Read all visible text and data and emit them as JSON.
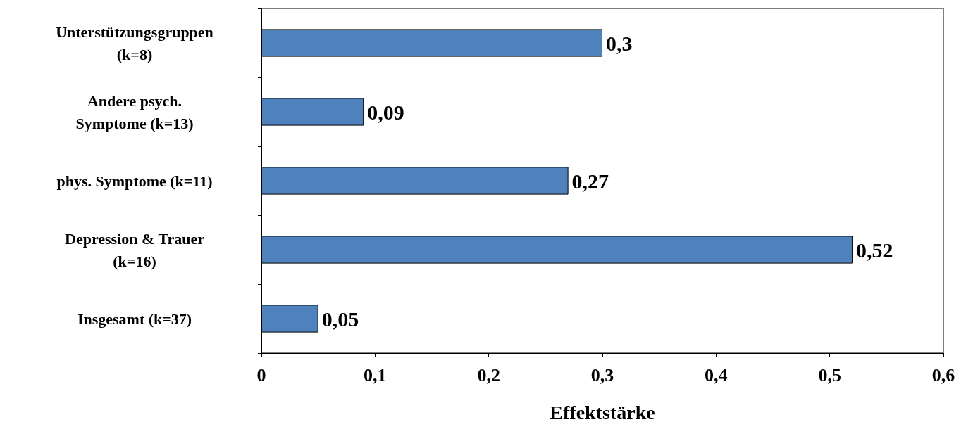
{
  "chart_data": {
    "type": "bar",
    "orientation": "horizontal",
    "xlabel": "Effektstärke",
    "categories": [
      "Unterstützungsgruppen (k=8)",
      "Andere psych. Symptome (k=13)",
      "phys. Symptome (k=11)",
      "Depression & Trauer (k=16)",
      "Insgesamt (k=37)"
    ],
    "values": [
      0.3,
      0.09,
      0.27,
      0.52,
      0.05
    ],
    "value_labels": [
      "0,3",
      "0,09",
      "0,27",
      "0,52",
      "0,05"
    ],
    "color": "#4f81bd",
    "xlim": [
      0,
      0.6
    ],
    "xticks": [
      0,
      {
        "value": 0.1,
        "label": "0,1"
      },
      {
        "value": 0.2,
        "label": "0,2"
      },
      {
        "value": 0.3,
        "label": "0,3"
      },
      {
        "value": 0.4,
        "label": "0,4"
      },
      {
        "value": 0.5,
        "label": "0,5"
      },
      {
        "value": 0.6,
        "label": "0,6"
      }
    ],
    "grid": false
  }
}
